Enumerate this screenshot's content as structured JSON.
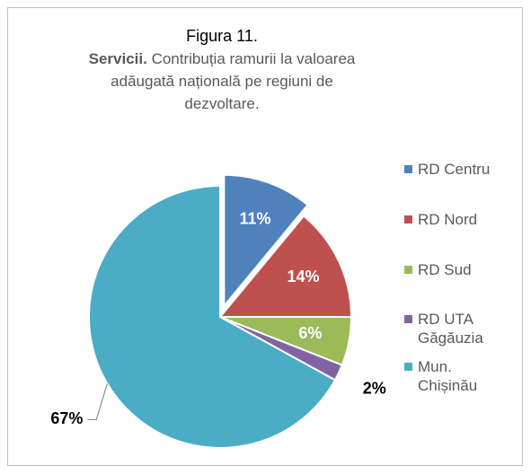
{
  "chart_data": {
    "type": "pie",
    "title": "Figura 11.",
    "subtitle_bold": "Servicii.",
    "subtitle": "Contribuția ramurii la valoarea adăugată națională pe regiuni de dezvoltare.",
    "categories": [
      "RD Centru",
      "RD Nord",
      "RD Sud",
      "RD UTA Găgăuzia",
      "Mun. Chișinău"
    ],
    "values": [
      11,
      14,
      6,
      2,
      67
    ],
    "value_labels": [
      "11%",
      "14%",
      "6%",
      "2%",
      "67%"
    ],
    "colors": [
      "#4f81bd",
      "#c0504d",
      "#9bbb59",
      "#8064a2",
      "#4bacc6"
    ],
    "legend": "right"
  }
}
